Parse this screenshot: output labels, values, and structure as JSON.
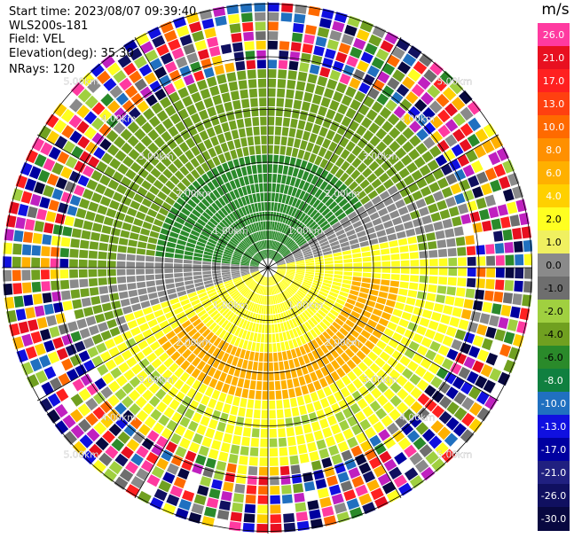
{
  "header": {
    "start_time": "Start time: 2023/08/07 09:39:40",
    "instrument": "WLS200s-181",
    "field": "Field: VEL",
    "elevation": "Elevation(deg): 35.30",
    "nrays": "NRays: 120"
  },
  "map": {
    "range_ring_labels": [
      "1.00km",
      "2.00km",
      "3.00km",
      "4.00km",
      "5.00km"
    ],
    "ring_count": 5,
    "spoke_count": 12,
    "ray_count": 120,
    "gates_per_ray": 28
  },
  "colorbar": {
    "unit": "m/s",
    "labels": [
      "26.0",
      "21.0",
      "17.0",
      "13.0",
      "10.0",
      "8.0",
      "6.0",
      "4.0",
      "2.0",
      "1.0",
      "0.0",
      "-1.0",
      "-2.0",
      "-4.0",
      "-6.0",
      "-8.0",
      "-10.0",
      "-13.0",
      "-17.0",
      "-21.0",
      "-26.0",
      "-30.0"
    ],
    "colors": [
      "#ff3aa0",
      "#e81020",
      "#ff2020",
      "#ff4010",
      "#ff6a00",
      "#ff9000",
      "#ffb000",
      "#ffd000",
      "#ffff20",
      "#f0f060",
      "#8a8a8a",
      "#6e6e6e",
      "#a0d040",
      "#70a020",
      "#2a8a2a",
      "#108040",
      "#2070c0",
      "#1010e0",
      "#0000a0",
      "#202080",
      "#101060",
      "#080840"
    ]
  }
}
